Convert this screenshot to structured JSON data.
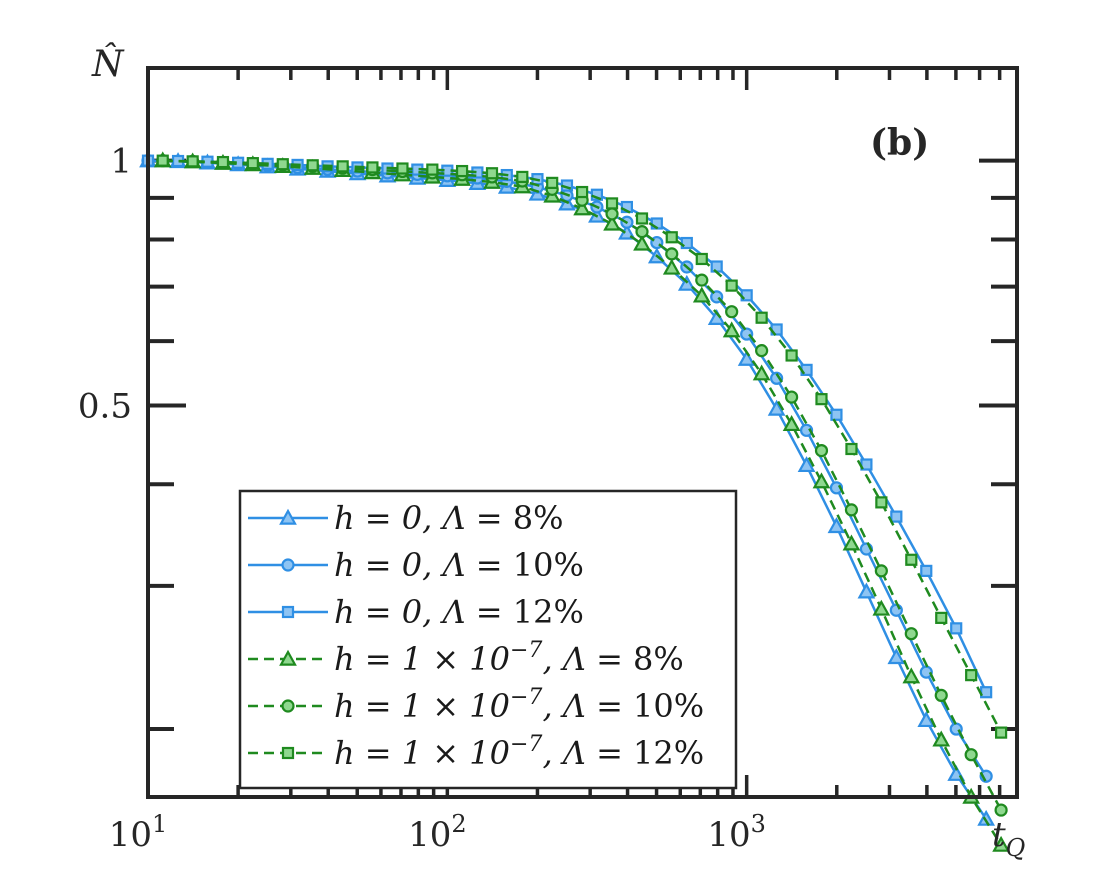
{
  "chart_data": {
    "type": "line",
    "panel_label": "(b)",
    "ylabel": "N̂",
    "xlabel_main": "t",
    "xlabel_sub": "Q",
    "xscale": "log",
    "yscale": "log",
    "xlim": [
      10,
      8000
    ],
    "ylim": [
      0.165,
      1.3
    ],
    "yticks": [
      {
        "value": 1,
        "label": "1"
      },
      {
        "value": 0.5,
        "label": "0.5"
      }
    ],
    "xticks": [
      {
        "value": 10,
        "base": "10",
        "exp": "1"
      },
      {
        "value": 100,
        "base": "10",
        "exp": "2"
      },
      {
        "value": 1000,
        "base": "10",
        "exp": "3"
      }
    ],
    "colors": {
      "blue": "#2f8fe4",
      "green": "#1f8a1f",
      "green_fill": "#8fd88f",
      "blue_fill": "#8ec4f3"
    },
    "legend_position": "lower-left",
    "series": [
      {
        "name": "h = 0, Λ = 8%",
        "color": "#2f8fe4",
        "fill": "#8ec4f3",
        "dash": "solid",
        "marker": "triangle",
        "x": [
          10,
          12.6,
          15.8,
          20,
          25.1,
          31.6,
          39.8,
          50.1,
          63.1,
          79.4,
          100,
          126,
          158,
          200,
          251,
          316,
          398,
          501,
          631,
          794,
          1000,
          1259,
          1585,
          1995,
          2512,
          3162,
          3981,
          5012,
          6310
        ],
        "y": [
          1.0,
          0.998,
          0.994,
          0.989,
          0.983,
          0.977,
          0.971,
          0.964,
          0.958,
          0.952,
          0.946,
          0.938,
          0.928,
          0.91,
          0.885,
          0.855,
          0.815,
          0.762,
          0.705,
          0.64,
          0.57,
          0.495,
          0.422,
          0.355,
          0.295,
          0.245,
          0.205,
          0.176,
          0.155
        ]
      },
      {
        "name": "h = 0, Λ = 10%",
        "color": "#2f8fe4",
        "fill": "#8ec4f3",
        "dash": "solid",
        "marker": "circle",
        "x": [
          10,
          12.6,
          15.8,
          20,
          25.1,
          31.6,
          39.8,
          50.1,
          63.1,
          79.4,
          100,
          126,
          158,
          200,
          251,
          316,
          398,
          501,
          631,
          794,
          1000,
          1259,
          1585,
          1995,
          2512,
          3162,
          3981,
          5012,
          6310
        ],
        "y": [
          1.0,
          0.998,
          0.995,
          0.991,
          0.986,
          0.981,
          0.976,
          0.971,
          0.966,
          0.962,
          0.958,
          0.952,
          0.943,
          0.928,
          0.906,
          0.877,
          0.84,
          0.793,
          0.74,
          0.68,
          0.612,
          0.54,
          0.466,
          0.396,
          0.333,
          0.28,
          0.235,
          0.2,
          0.175
        ]
      },
      {
        "name": "h = 0, Λ = 12%",
        "color": "#2f8fe4",
        "fill": "#8ec4f3",
        "dash": "solid",
        "marker": "square",
        "x": [
          10,
          12.6,
          15.8,
          20,
          25.1,
          31.6,
          39.8,
          50.1,
          63.1,
          79.4,
          100,
          126,
          158,
          200,
          251,
          316,
          398,
          501,
          631,
          794,
          1000,
          1259,
          1585,
          1995,
          2512,
          3162,
          3981,
          5012,
          6310
        ],
        "y": [
          1.0,
          0.999,
          0.997,
          0.994,
          0.991,
          0.988,
          0.984,
          0.981,
          0.978,
          0.975,
          0.972,
          0.967,
          0.96,
          0.949,
          0.932,
          0.908,
          0.877,
          0.837,
          0.792,
          0.741,
          0.683,
          0.62,
          0.553,
          0.487,
          0.423,
          0.365,
          0.313,
          0.266,
          0.222
        ]
      },
      {
        "name": "h = 1 × 10−7, Λ = 8%",
        "color": "#1f8a1f",
        "fill": "#8fd88f",
        "dash": "dashed",
        "marker": "triangle",
        "x": [
          11.2,
          14.1,
          17.8,
          22.4,
          28.2,
          35.5,
          44.7,
          56.2,
          70.8,
          89.1,
          112,
          141,
          178,
          224,
          282,
          355,
          447,
          562,
          708,
          891,
          1122,
          1413,
          1778,
          2239,
          2818,
          3548,
          4467,
          5623,
          7079
        ],
        "y": [
          1.0,
          0.997,
          0.993,
          0.989,
          0.984,
          0.979,
          0.973,
          0.967,
          0.961,
          0.955,
          0.949,
          0.941,
          0.929,
          0.905,
          0.873,
          0.836,
          0.79,
          0.738,
          0.682,
          0.618,
          0.547,
          0.474,
          0.403,
          0.338,
          0.281,
          0.232,
          0.194,
          0.165,
          0.144
        ]
      },
      {
        "name": "h = 1 × 10−7, Λ = 10%",
        "color": "#1f8a1f",
        "fill": "#8fd88f",
        "dash": "dashed",
        "marker": "circle",
        "x": [
          11.2,
          14.1,
          17.8,
          22.4,
          28.2,
          35.5,
          44.7,
          56.2,
          70.8,
          89.1,
          112,
          141,
          178,
          224,
          282,
          355,
          447,
          562,
          708,
          891,
          1122,
          1413,
          1778,
          2239,
          2818,
          3548,
          4467,
          5623,
          7079
        ],
        "y": [
          1.0,
          0.998,
          0.995,
          0.992,
          0.988,
          0.984,
          0.979,
          0.975,
          0.97,
          0.966,
          0.961,
          0.955,
          0.944,
          0.922,
          0.894,
          0.86,
          0.818,
          0.768,
          0.713,
          0.652,
          0.584,
          0.512,
          0.44,
          0.372,
          0.313,
          0.262,
          0.22,
          0.186,
          0.159
        ]
      },
      {
        "name": "h = 1 × 10−7, Λ = 12%",
        "color": "#1f8a1f",
        "fill": "#8fd88f",
        "dash": "dashed",
        "marker": "square",
        "x": [
          11.2,
          14.1,
          17.8,
          22.4,
          28.2,
          35.5,
          44.7,
          56.2,
          70.8,
          89.1,
          112,
          141,
          178,
          224,
          282,
          355,
          447,
          562,
          708,
          891,
          1122,
          1413,
          1778,
          2239,
          2818,
          3548,
          4467,
          5623,
          7079
        ],
        "y": [
          1.0,
          0.998,
          0.996,
          0.993,
          0.99,
          0.987,
          0.984,
          0.981,
          0.978,
          0.975,
          0.971,
          0.965,
          0.955,
          0.939,
          0.915,
          0.886,
          0.849,
          0.805,
          0.757,
          0.702,
          0.641,
          0.576,
          0.509,
          0.442,
          0.38,
          0.323,
          0.274,
          0.233,
          0.198
        ]
      }
    ],
    "legend": [
      {
        "prefix": "h = 0, Λ = ",
        "value": "8%"
      },
      {
        "prefix": "h = 0, Λ = ",
        "value": "10%"
      },
      {
        "prefix": "h = 0, Λ = ",
        "value": "12%"
      },
      {
        "prefix": "h = 1 × 10",
        "exp": "−7",
        "suffix": ", Λ = ",
        "value": "8%"
      },
      {
        "prefix": "h = 1 × 10",
        "exp": "−7",
        "suffix": ", Λ = ",
        "value": "10%"
      },
      {
        "prefix": "h = 1 × 10",
        "exp": "−7",
        "suffix": ", Λ = ",
        "value": "12%"
      }
    ]
  }
}
